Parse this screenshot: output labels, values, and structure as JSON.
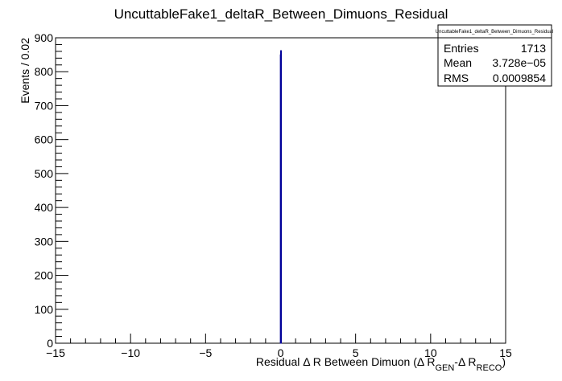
{
  "chart_data": {
    "type": "bar",
    "title": "UncuttableFake1_deltaR_Between_Dimuons_Residual",
    "xlabel": {
      "prefix": "Residual Δ R Between Dimuon (Δ R",
      "sub1": "GEN",
      "mid": "-Δ R",
      "sub2": "RECO",
      "suffix": ")"
    },
    "ylabel": "Events / 0.02",
    "xlim": [
      -15,
      15
    ],
    "ylim": [
      0,
      900
    ],
    "x_ticks": [
      -15,
      -10,
      -5,
      0,
      5,
      10,
      15
    ],
    "x_tick_labels": [
      "−15",
      "−10",
      "−5",
      "0",
      "5",
      "10",
      "15"
    ],
    "y_ticks": [
      0,
      100,
      200,
      300,
      400,
      500,
      600,
      700,
      800,
      900
    ],
    "y_tick_labels": [
      "0",
      "100",
      "200",
      "300",
      "400",
      "500",
      "600",
      "700",
      "800",
      "900"
    ],
    "bin_width": 0.02,
    "bins": [
      {
        "x": -0.02,
        "y": 850
      },
      {
        "x": 0.0,
        "y": 862
      }
    ],
    "line_color": "#000099",
    "stats": {
      "name": "UncuttableFake1_deltaR_Between_Dimuons_Residual",
      "rows": [
        {
          "label": "Entries",
          "value": "1713"
        },
        {
          "label": "Mean",
          "value": "3.728e−05"
        },
        {
          "label": "RMS",
          "value": "0.0009854"
        }
      ]
    }
  }
}
